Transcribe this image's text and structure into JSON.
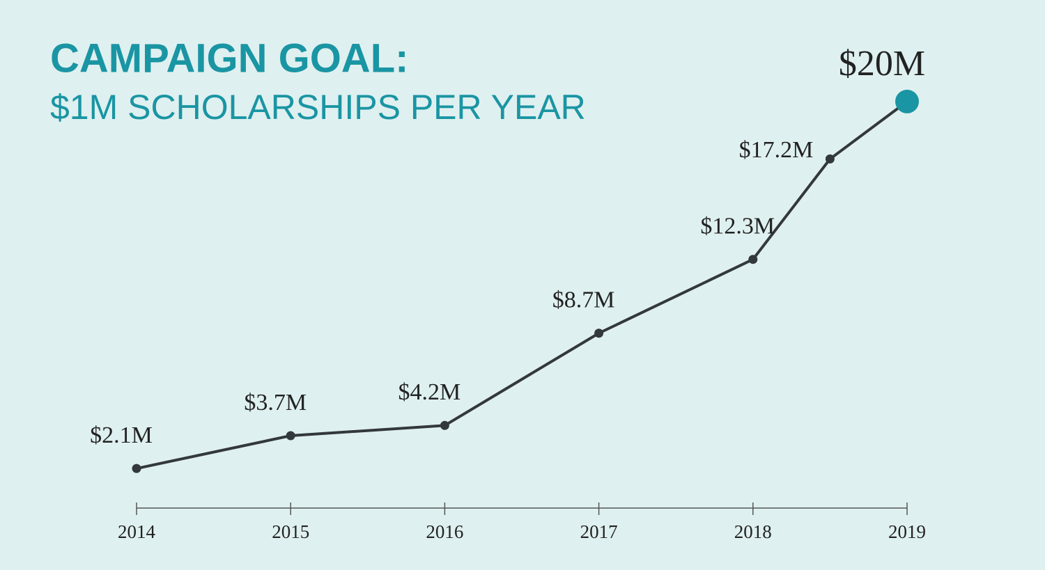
{
  "chart_data": {
    "type": "line",
    "title": "CAMPAIGN GOAL:",
    "subtitle": "$1M SCHOLARSHIPS PER YEAR",
    "x": [
      2014,
      2015,
      2016,
      2017,
      2018,
      2018.5,
      2019
    ],
    "series": [
      {
        "color": "#33383c",
        "values": [
          2.1,
          3.7,
          4.2,
          8.7,
          12.3,
          17.2,
          20
        ],
        "value_labels": [
          "$2.1M",
          "$3.7M",
          "$4.2M",
          "$8.7M",
          "$12.3M",
          "$17.2M",
          "$20M"
        ]
      }
    ],
    "highlight_color": "#1a95a3",
    "xlim": [
      2014,
      2019
    ],
    "xticks": [
      2014,
      2015,
      2016,
      2017,
      2018,
      2019
    ],
    "ylim": [
      0,
      22
    ]
  }
}
